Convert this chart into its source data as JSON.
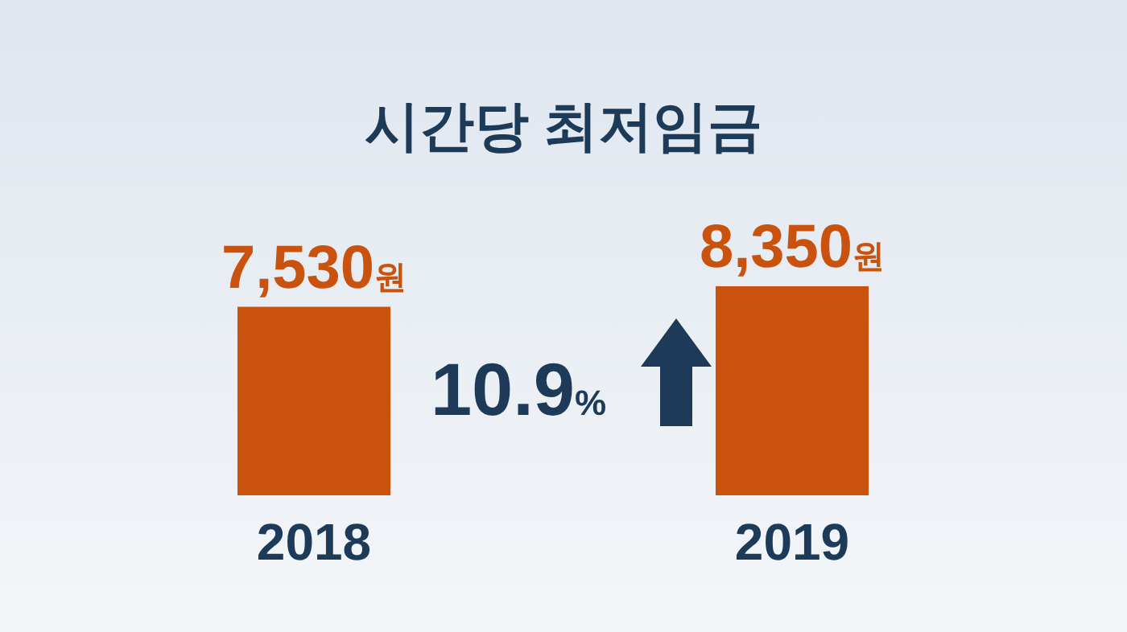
{
  "chart_data": {
    "type": "bar",
    "title": "시간당 최저임금",
    "categories": [
      "2018",
      "2019"
    ],
    "values": [
      7530,
      8350
    ],
    "value_labels": [
      "7,530원",
      "8,350원"
    ],
    "color": "#c9520f",
    "annotations": [
      "10.9%"
    ],
    "grid": false
  }
}
